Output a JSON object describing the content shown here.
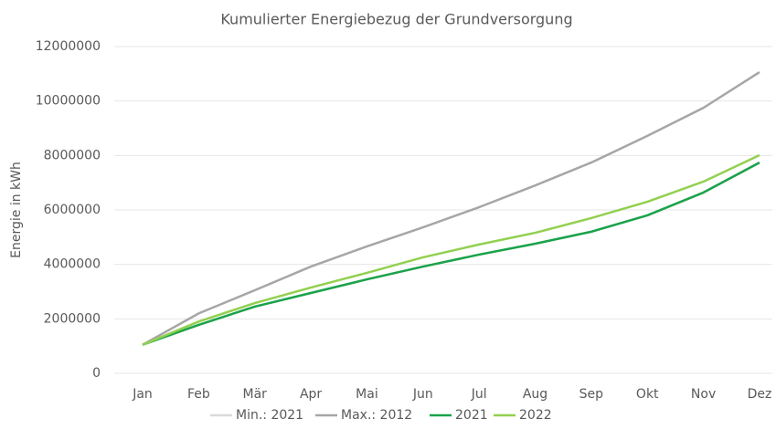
{
  "chart_data": {
    "type": "line",
    "title": "Kumulierter Energiebezug der Grundversorgung",
    "ylabel": "Energie in kWh",
    "categories": [
      "Jan",
      "Feb",
      "Mär",
      "Apr",
      "Mai",
      "Jun",
      "Jul",
      "Aug",
      "Sep",
      "Okt",
      "Nov",
      "Dez"
    ],
    "series": [
      {
        "name": "Min.: 2021",
        "color": "#d9d9d9",
        "values": [
          1050000,
          1780000,
          2450000,
          2950000,
          3450000,
          3920000,
          4360000,
          4760000,
          5200000,
          5800000,
          6640000,
          7740000
        ]
      },
      {
        "name": "Max.: 2012",
        "color": "#a6a6a6",
        "values": [
          1050000,
          2200000,
          3050000,
          3920000,
          4660000,
          5360000,
          6100000,
          6900000,
          7740000,
          8720000,
          9750000,
          11060000
        ]
      },
      {
        "name": "2021",
        "color": "#1aa34a",
        "values": [
          1050000,
          1780000,
          2450000,
          2950000,
          3450000,
          3920000,
          4360000,
          4760000,
          5200000,
          5800000,
          6640000,
          7740000
        ]
      },
      {
        "name": "2022",
        "color": "#92d050",
        "values": [
          1050000,
          1900000,
          2580000,
          3150000,
          3690000,
          4260000,
          4730000,
          5160000,
          5700000,
          6300000,
          7040000,
          8010000
        ]
      }
    ],
    "ylim": [
      0,
      12000000
    ],
    "yticks": [
      0,
      2000000,
      4000000,
      6000000,
      8000000,
      10000000,
      12000000
    ],
    "grid": true,
    "legend": "bottom"
  }
}
